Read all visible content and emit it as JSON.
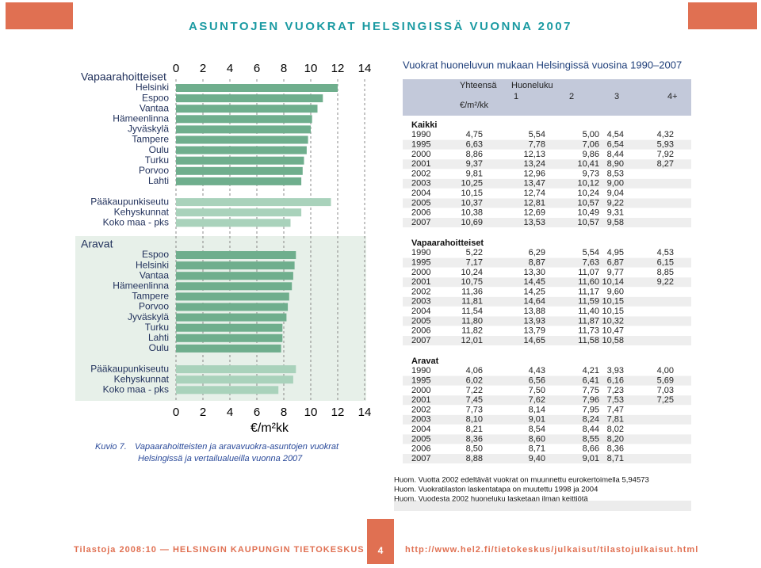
{
  "header": {
    "title": "ASUNTOJEN VUOKRAT HELSINGISSÄ VUONNA 2007"
  },
  "chart_data": {
    "type": "bar",
    "orientation": "horizontal",
    "xlim": [
      0,
      14
    ],
    "xticks": [
      0,
      2,
      4,
      6,
      8,
      10,
      12,
      14
    ],
    "grid": true,
    "x_label": "€/m²kk",
    "caption_label": "Kuvio 7.",
    "caption_lines": [
      "Vapaarahoitteisten ja aravavuokra-asuntojen vuokrat",
      "Helsingissä ja vertailualueilla vuonna 2007"
    ],
    "groups": [
      {
        "name": "Vapaarahoitteiset",
        "shaded": false,
        "color": "#6fae8d",
        "summary_color": "#a9d2bb",
        "categories": [
          "Helsinki",
          "Espoo",
          "Vantaa",
          "Hämeenlinna",
          "Jyväskylä",
          "Tampere",
          "Oulu",
          "Turku",
          "Porvoo",
          "Lahti"
        ],
        "values": [
          12.0,
          10.9,
          10.5,
          10.1,
          10.0,
          9.8,
          9.7,
          9.5,
          9.4,
          9.3
        ],
        "summary_categories": [
          "Pääkaupunkiseutu",
          "Kehyskunnat",
          "Koko maa - pks"
        ],
        "summary_values": [
          11.5,
          9.3,
          8.5
        ]
      },
      {
        "name": "Aravat",
        "shaded": true,
        "color": "#6fae8d",
        "summary_color": "#a9d2bb",
        "categories": [
          "Espoo",
          "Helsinki",
          "Vantaa",
          "Hämeenlinna",
          "Tampere",
          "Porvoo",
          "Jyväskylä",
          "Turku",
          "Lahti",
          "Oulu"
        ],
        "values": [
          8.9,
          8.8,
          8.7,
          8.6,
          8.4,
          8.3,
          8.2,
          7.9,
          7.9,
          7.8
        ],
        "summary_categories": [
          "Pääkaupunkiseutu",
          "Kehyskunnat",
          "Koko maa - pks"
        ],
        "summary_values": [
          8.9,
          8.7,
          7.6
        ]
      }
    ]
  },
  "table": {
    "title": "Vuokrat huoneluvun mukaan Helsingissä vuosina 1990–2007",
    "header": {
      "total": "Yhteensä",
      "rooms": "Huoneluku",
      "room_counts": [
        "1",
        "2",
        "3",
        "4+"
      ],
      "unit": "€/m²/kk"
    },
    "sections": [
      {
        "name": "Kaikki",
        "rows": [
          [
            "1990",
            "4,75",
            "5,54",
            "5,00",
            "4,54",
            "4,32"
          ],
          [
            "1995",
            "6,63",
            "7,78",
            "7,06",
            "6,54",
            "5,93"
          ],
          [
            "2000",
            "8,86",
            "12,13",
            "9,86",
            "8,44",
            "7,92"
          ],
          [
            "2001",
            "9,37",
            "13,24",
            "10,41",
            "8,90",
            "8,27"
          ],
          [
            "2002",
            "9,81",
            "12,96",
            "9,73",
            "8,53"
          ],
          [
            "2003",
            "10,25",
            "13,47",
            "10,12",
            "9,00"
          ],
          [
            "2004",
            "10,15",
            "12,74",
            "10,24",
            "9,04"
          ],
          [
            "2005",
            "10,37",
            "12,81",
            "10,57",
            "9,22"
          ],
          [
            "2006",
            "10,38",
            "12,69",
            "10,49",
            "9,31"
          ],
          [
            "2007",
            "10,69",
            "13,53",
            "10,57",
            "9,58"
          ]
        ]
      },
      {
        "name": "Vapaarahoitteiset",
        "rows": [
          [
            "1990",
            "5,22",
            "6,29",
            "5,54",
            "4,95",
            "4,53"
          ],
          [
            "1995",
            "7,17",
            "8,87",
            "7,63",
            "6,87",
            "6,15"
          ],
          [
            "2000",
            "10,24",
            "13,30",
            "11,07",
            "9,77",
            "8,85"
          ],
          [
            "2001",
            "10,75",
            "14,45",
            "11,60",
            "10,14",
            "9,22"
          ],
          [
            "2002",
            "11,36",
            "14,25",
            "11,17",
            "9,60"
          ],
          [
            "2003",
            "11,81",
            "14,64",
            "11,59",
            "10,15"
          ],
          [
            "2004",
            "11,54",
            "13,88",
            "11,40",
            "10,15"
          ],
          [
            "2005",
            "11,80",
            "13,93",
            "11,87",
            "10,32"
          ],
          [
            "2006",
            "11,82",
            "13,79",
            "11,73",
            "10,47"
          ],
          [
            "2007",
            "12,01",
            "14,65",
            "11,58",
            "10,58"
          ]
        ]
      },
      {
        "name": "Aravat",
        "rows": [
          [
            "1990",
            "4,06",
            "4,43",
            "4,21",
            "3,93",
            "4,00"
          ],
          [
            "1995",
            "6,02",
            "6,56",
            "6,41",
            "6,16",
            "5,69"
          ],
          [
            "2000",
            "7,22",
            "7,50",
            "7,75",
            "7,23",
            "7,03"
          ],
          [
            "2001",
            "7,45",
            "7,62",
            "7,96",
            "7,53",
            "7,25"
          ],
          [
            "2002",
            "7,73",
            "8,14",
            "7,95",
            "7,47"
          ],
          [
            "2003",
            "8,10",
            "9,01",
            "8,24",
            "7,81"
          ],
          [
            "2004",
            "8,21",
            "8,54",
            "8,44",
            "8,02"
          ],
          [
            "2005",
            "8,36",
            "8,60",
            "8,55",
            "8,20"
          ],
          [
            "2006",
            "8,50",
            "8,71",
            "8,66",
            "8,36"
          ],
          [
            "2007",
            "8,88",
            "9,40",
            "9,01",
            "8,71"
          ]
        ]
      }
    ]
  },
  "notes": [
    "Huom. Vuotta 2002 edeltävät vuokrat on muunnettu eurokertoimella 5,94573",
    "Huom. Vuokratilaston laskentatapa on muutettu 1998 ja 2004",
    "Huom. Vuodesta 2002 huoneluku lasketaan ilman keittiötä"
  ],
  "footer": {
    "publisher": "Tilastoja 2008:10  —  HELSINGIN KAUPUNGIN TIETOKESKUS",
    "page": "4",
    "url": "http://www.hel2.fi/tietokeskus/julkaisut/tilastojulkaisut.html"
  }
}
